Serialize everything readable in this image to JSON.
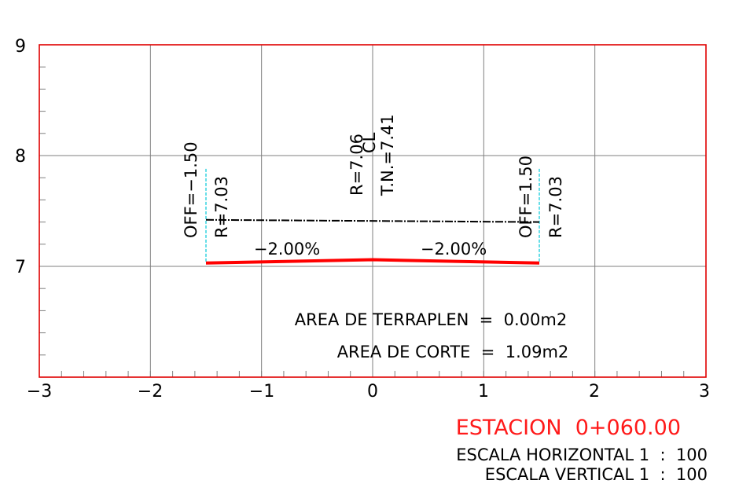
{
  "axes": {
    "x_ticks": [
      "−3",
      "−2",
      "−1",
      "0",
      "1",
      "2",
      "3"
    ],
    "y_ticks": [
      "9",
      "8",
      "7"
    ],
    "x_range": [
      -3,
      3
    ],
    "y_range": [
      6,
      9
    ],
    "grid": true,
    "frame_color": "#e00000",
    "grid_color": "#7f7f7f"
  },
  "labels": {
    "off_left": "OFF=−1.50",
    "r_left": "R=7.03",
    "r_center": "R=7.06",
    "cl": "CL",
    "tn": "T.N.=7.41",
    "off_right": "OFF=1.50",
    "r_right": "R=7.03",
    "slope_left": "−2.00%",
    "slope_right": "−2.00%"
  },
  "areas": {
    "fill": "AREA DE TERRAPLEN  =  0.00m2",
    "cut": "AREA DE CORTE  =  1.09m2"
  },
  "footer": {
    "station": "ESTACION  0+060.00",
    "scale_h": "ESCALA HORIZONTAL 1  :  100",
    "scale_v": "ESCALA VERTICAL 1  :  100"
  },
  "chart_data": {
    "type": "line",
    "xlim": [
      -3,
      3
    ],
    "ylim": [
      6,
      9
    ],
    "series": [
      {
        "x": [
          -1.5,
          0,
          1.5
        ],
        "y": [
          7.03,
          7.06,
          7.03
        ],
        "color": "#ff0000"
      },
      {
        "x": [
          -1.5,
          1.5
        ],
        "y": [
          7.42,
          7.4
        ],
        "color": "#000000"
      }
    ],
    "offset_lines_x": [
      -1.5,
      1.5
    ],
    "offset_line_color": "#00c8d8"
  }
}
